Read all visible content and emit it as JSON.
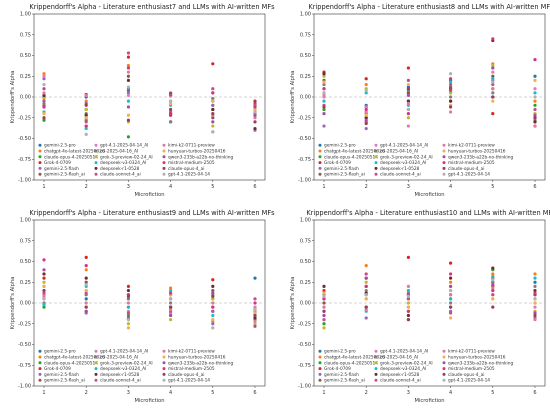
{
  "chart_data": [
    {
      "type": "scatter",
      "title": "Krippendorff's Alpha - Literature enthusiast7 and LLMs with AI-written MFs",
      "xlabel": "Microfiction",
      "ylabel": "Krippendorff's Alpha",
      "ylim": [
        -1.0,
        1.0
      ],
      "xticks": [
        "1",
        "2",
        "3",
        "4",
        "5",
        "6"
      ],
      "yticks": [
        "-1.00",
        "-0.75",
        "-0.50",
        "-0.25",
        "0.00",
        "0.25",
        "0.50",
        "0.75",
        "1.00"
      ],
      "grid": false,
      "reference_line": 0,
      "legend_position": "bottom",
      "series_values": [
        [
          0.0,
          0.0,
          0.08,
          -0.2,
          -0.05,
          -0.08
        ],
        [
          0.28,
          -0.05,
          0.38,
          0.05,
          -0.42,
          -0.1
        ],
        [
          -0.28,
          -0.28,
          -0.48,
          -0.2,
          -0.1,
          -0.12
        ],
        [
          -0.12,
          0.03,
          0.48,
          -0.22,
          0.4,
          -0.05
        ],
        [
          0.22,
          -0.35,
          0.05,
          -0.3,
          -0.1,
          -0.4
        ],
        [
          -0.1,
          -0.15,
          0.25,
          0.02,
          -0.25,
          -0.18
        ],
        [
          0.25,
          -0.25,
          0.02,
          -0.3,
          -0.15,
          -0.2
        ],
        [
          -0.08,
          -0.2,
          0.1,
          -0.3,
          -0.02,
          -0.15
        ],
        [
          -0.02,
          -0.15,
          -0.3,
          -0.05,
          -0.35,
          -0.22
        ],
        [
          -0.18,
          -0.38,
          -0.05,
          -0.1,
          0.05,
          -0.2
        ],
        [
          0.02,
          -0.22,
          0.2,
          0.04,
          -0.15,
          -0.38
        ],
        [
          -0.05,
          -0.3,
          0.53,
          -0.18,
          0.1,
          -0.1
        ],
        [
          0.05,
          0.02,
          0.3,
          0.01,
          -0.22,
          -0.25
        ],
        [
          -0.2,
          -0.25,
          -0.22,
          -0.08,
          -0.05,
          -0.15
        ],
        [
          0.1,
          -0.08,
          -0.12,
          0.03,
          -0.3,
          -0.22
        ],
        [
          -0.12,
          -0.35,
          0.35,
          -0.2,
          0.05,
          -0.12
        ],
        [
          -0.25,
          -0.1,
          -0.28,
          -0.15,
          -0.2,
          -0.3
        ],
        [
          0.15,
          -0.45,
          0.12,
          -0.05,
          -0.42,
          -0.18
        ]
      ]
    },
    {
      "type": "scatter",
      "title": "Krippendorff's Alpha - Literature enthusiast8 and LLMs with AI-written MFs",
      "xlabel": "Microfiction",
      "ylabel": "Krippendorff's Alpha",
      "ylim": [
        -1.0,
        1.0
      ],
      "xticks": [
        "1",
        "2",
        "3",
        "4",
        "5",
        "6"
      ],
      "yticks": [
        "-1.00",
        "-0.75",
        "-0.50",
        "-0.25",
        "0.00",
        "0.25",
        "0.50",
        "0.75",
        "1.00"
      ],
      "grid": false,
      "reference_line": 0,
      "legend_position": "bottom",
      "series_values": [
        [
          0.1,
          -0.1,
          0.12,
          0.2,
          0.0,
          0.25
        ],
        [
          0.05,
          0.15,
          -0.05,
          0.1,
          0.4,
          -0.05
        ],
        [
          -0.15,
          -0.12,
          0.05,
          -0.05,
          0.1,
          -0.1
        ],
        [
          0.3,
          0.22,
          0.35,
          0.1,
          -0.2,
          -0.35
        ],
        [
          -0.35,
          -0.38,
          -0.15,
          0.05,
          0.2,
          -0.3
        ],
        [
          0.2,
          -0.25,
          0.05,
          0.12,
          0.25,
          -0.25
        ],
        [
          0.0,
          -0.12,
          -0.35,
          -0.05,
          0.3,
          0.1
        ],
        [
          0.15,
          -0.2,
          0.08,
          0.0,
          0.05,
          -0.28
        ],
        [
          0.25,
          0.1,
          -0.25,
          0.05,
          0.38,
          -0.2
        ],
        [
          -0.05,
          0.05,
          -0.1,
          0.18,
          0.22,
          0.05
        ],
        [
          0.28,
          -0.25,
          -0.05,
          -0.05,
          0.68,
          -0.3
        ],
        [
          -0.1,
          -0.3,
          0.2,
          0.15,
          0.15,
          -0.15
        ],
        [
          0.02,
          -0.18,
          -0.08,
          -0.18,
          0.1,
          -0.35
        ],
        [
          0.18,
          -0.22,
          0.15,
          -0.1,
          -0.05,
          0.2
        ],
        [
          -0.2,
          -0.28,
          0.02,
          0.08,
          0.35,
          -0.22
        ],
        [
          0.1,
          -0.15,
          -0.2,
          0.22,
          0.7,
          0.45
        ],
        [
          -0.12,
          -0.32,
          0.1,
          -0.12,
          0.0,
          -0.25
        ],
        [
          0.05,
          0.08,
          -0.15,
          0.28,
          0.18,
          0.0
        ]
      ]
    },
    {
      "type": "scatter",
      "title": "Krippendorff's Alpha - Literature enthusiast9 and LLMs with AI-written MFs",
      "xlabel": "Microfiction",
      "ylabel": "Krippendorff's Alpha",
      "ylim": [
        -1.0,
        1.0
      ],
      "xticks": [
        "1",
        "2",
        "3",
        "4",
        "5",
        "6"
      ],
      "yticks": [
        "-1.00",
        "-0.75",
        "-0.50",
        "-0.25",
        "0.00",
        "0.25",
        "0.50",
        "0.75",
        "1.00"
      ],
      "grid": false,
      "reference_line": 0,
      "legend_position": "bottom",
      "series_values": [
        [
          0.2,
          0.05,
          -0.05,
          0.1,
          -0.1,
          0.3
        ],
        [
          0.1,
          0.4,
          0.05,
          0.18,
          -0.22,
          -0.05
        ],
        [
          -0.05,
          -0.1,
          -0.15,
          -0.05,
          0.05,
          -0.12
        ],
        [
          0.3,
          0.55,
          0.2,
          0.1,
          0.28,
          -0.08
        ],
        [
          0.15,
          -0.12,
          -0.2,
          -0.15,
          -0.25,
          -0.2
        ],
        [
          0.05,
          0.25,
          0.1,
          -0.05,
          0.15,
          -0.15
        ],
        [
          0.1,
          0.15,
          -0.1,
          -0.12,
          -0.05,
          -0.05
        ],
        [
          0.0,
          0.1,
          0.05,
          0.0,
          0.1,
          -0.12
        ],
        [
          0.25,
          -0.05,
          -0.25,
          -0.2,
          0.05,
          -0.25
        ],
        [
          -0.02,
          0.2,
          -0.05,
          0.15,
          -0.15,
          -0.1
        ],
        [
          0.35,
          0.3,
          0.15,
          0.05,
          0.2,
          -0.18
        ],
        [
          0.12,
          0.12,
          -0.12,
          -0.1,
          -0.1,
          0.05
        ],
        [
          0.08,
          0.0,
          0.0,
          -0.08,
          0.0,
          -0.22
        ],
        [
          0.2,
          0.15,
          -0.3,
          0.1,
          -0.2,
          -0.12
        ],
        [
          0.4,
          -0.1,
          -0.18,
          -0.15,
          0.12,
          -0.28
        ],
        [
          0.52,
          0.45,
          0.1,
          0.12,
          -0.05,
          0.0
        ],
        [
          0.15,
          -0.05,
          0.08,
          -0.05,
          0.08,
          -0.15
        ],
        [
          0.05,
          0.22,
          -0.2,
          0.05,
          -0.3,
          -0.08
        ]
      ]
    },
    {
      "type": "scatter",
      "title": "Krippendorff's Alpha - Literature enthusiast10 and LLMs with AI-written MFs",
      "xlabel": "Microfiction",
      "ylabel": "Krippendorff's Alpha",
      "ylim": [
        -1.0,
        1.0
      ],
      "xticks": [
        "1",
        "2",
        "3",
        "4",
        "5",
        "6"
      ],
      "yticks": [
        "-1.00",
        "-0.75",
        "-0.50",
        "-0.25",
        "0.00",
        "0.25",
        "0.50",
        "0.75",
        "1.00"
      ],
      "grid": false,
      "reference_line": 0,
      "legend_position": "bottom",
      "series_values": [
        [
          -0.1,
          0.1,
          0.05,
          0.1,
          0.25,
          0.25
        ],
        [
          0.05,
          0.45,
          0.15,
          0.25,
          0.35,
          0.35
        ],
        [
          -0.25,
          -0.05,
          -0.1,
          -0.05,
          0.4,
          0.0
        ],
        [
          0.15,
          0.3,
          0.55,
          0.48,
          0.2,
          0.1
        ],
        [
          -0.15,
          -0.18,
          -0.2,
          -0.1,
          0.1,
          -0.18
        ],
        [
          0.0,
          0.2,
          0.1,
          0.05,
          0.3,
          0.1
        ],
        [
          -0.05,
          0.05,
          -0.05,
          0.15,
          0.15,
          -0.05
        ],
        [
          0.1,
          0.15,
          0.12,
          0.0,
          0.25,
          0.2
        ],
        [
          -0.3,
          0.25,
          0.0,
          0.2,
          0.05,
          -0.1
        ],
        [
          0.05,
          -0.1,
          0.15,
          0.05,
          0.32,
          0.3
        ],
        [
          0.2,
          0.12,
          -0.15,
          0.3,
          0.42,
          0.15
        ],
        [
          -0.2,
          0.35,
          0.05,
          -0.12,
          0.1,
          0.05
        ],
        [
          -0.05,
          -0.08,
          0.2,
          0.1,
          0.18,
          -0.2
        ],
        [
          0.12,
          0.05,
          -0.05,
          -0.18,
          0.05,
          0.0
        ],
        [
          -0.15,
          0.3,
          0.1,
          0.2,
          0.22,
          -0.12
        ],
        [
          0.05,
          0.2,
          -0.1,
          0.35,
          0.15,
          0.12
        ],
        [
          -0.1,
          -0.05,
          -0.2,
          -0.05,
          -0.05,
          -0.15
        ],
        [
          0.08,
          0.1,
          0.08,
          0.15,
          0.28,
          0.05
        ]
      ]
    }
  ],
  "legend": [
    {
      "name": "gemini-2.5-pro",
      "color": "#1f77b4"
    },
    {
      "name": "chatgpt-4o-latest-20250326",
      "color": "#ff7f0e"
    },
    {
      "name": "claude-opus-4-20250514",
      "color": "#2ca02c"
    },
    {
      "name": "Grok-4-0709",
      "color": "#d62728"
    },
    {
      "name": "gemini-2.5-flash",
      "color": "#9467bd"
    },
    {
      "name": "gemini-2.5-flash_ai",
      "color": "#8c564b"
    },
    {
      "name": "gpt-4.1-2025-04-14_AI",
      "color": "#e377c2"
    },
    {
      "name": "o3-2025-04-16_AI",
      "color": "#7f7f7f"
    },
    {
      "name": "grok-3-preview-02-24_AI",
      "color": "#bcbd22"
    },
    {
      "name": "deepseek-v3-0324_AI",
      "color": "#17becf"
    },
    {
      "name": "deepseek-r1-0528",
      "color": "#6b2e2e"
    },
    {
      "name": "claude-sonnet-4_ai",
      "color": "#c44e8a"
    },
    {
      "name": "kimi-k2-0711-preview",
      "color": "#e07a9b"
    },
    {
      "name": "hunyuan-turbos-20250416",
      "color": "#f2b04a"
    },
    {
      "name": "qwen3-235b-a22b-no-thinking",
      "color": "#a64ca6"
    },
    {
      "name": "mistral-medium-2505",
      "color": "#d63384"
    },
    {
      "name": "claude-opus-4_ai",
      "color": "#9a3d5a"
    },
    {
      "name": "gpt-4.1-2025-04-14",
      "color": "#b0b0b0"
    }
  ]
}
